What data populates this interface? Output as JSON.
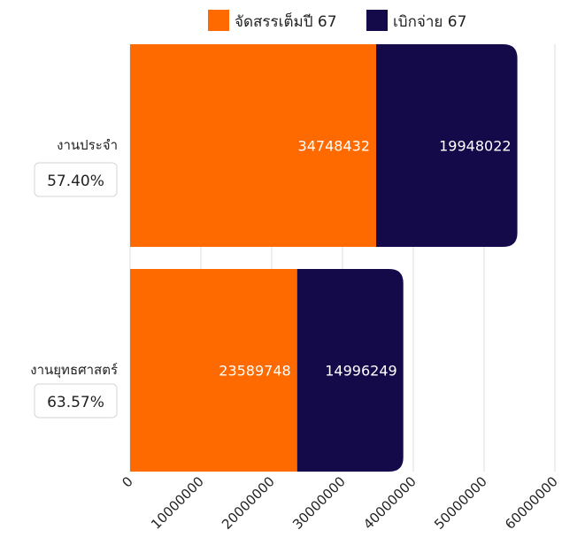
{
  "chart_data": {
    "type": "bar",
    "orientation": "horizontal",
    "stacked": true,
    "categories": [
      "งานประจำ",
      "งานยุทธศาสตร์"
    ],
    "percent_labels": [
      "57.40%",
      "63.57%"
    ],
    "series": [
      {
        "name": "จัดสรรเต็มปี 67",
        "color": "#FF6A00",
        "values": [
          34748432,
          23589748
        ]
      },
      {
        "name": "เบิกจ่าย 67",
        "color": "#140A4A",
        "values": [
          19948022,
          14996249
        ]
      }
    ],
    "xlim": [
      0,
      60000000
    ],
    "x_ticks": [
      0,
      10000000,
      20000000,
      30000000,
      40000000,
      50000000,
      60000000
    ],
    "x_tick_labels": [
      "0",
      "10000000",
      "20000000",
      "30000000",
      "40000000",
      "50000000",
      "60000000"
    ],
    "grid": true,
    "legend_position": "top"
  }
}
